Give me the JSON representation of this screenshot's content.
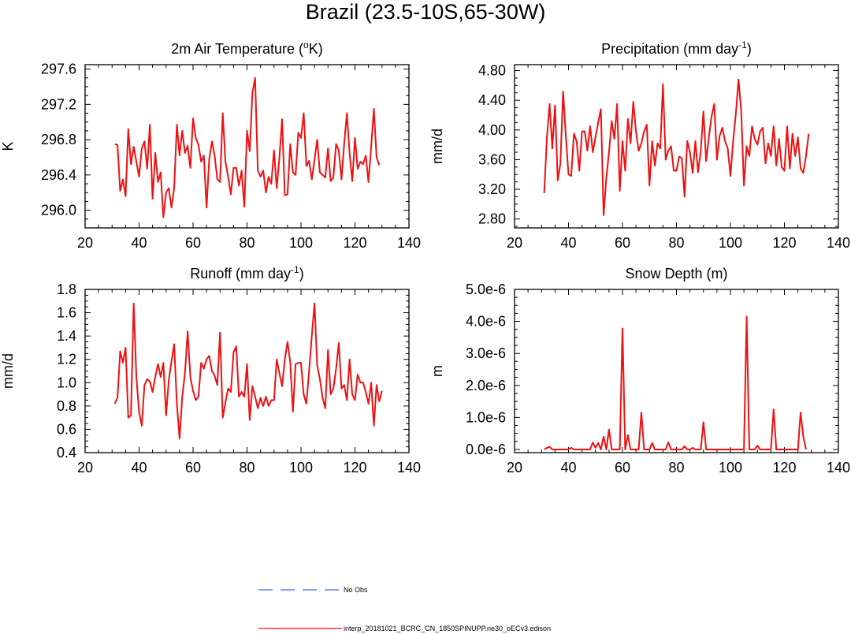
{
  "figure": {
    "title": "Brazil (23.5-10S,65-30W)"
  },
  "legend": {
    "entries": [
      {
        "label": "No Obs",
        "color": "#4466ff",
        "dash": true
      },
      {
        "label": "interp_20181021_BCRC_CN_1850SPINUPP.ne30_oECv3.edison",
        "color": "#ee1111",
        "dash": false
      }
    ]
  },
  "chart_data": [
    {
      "type": "line",
      "title_main": "2m Air Temperature (",
      "title_sup": "o",
      "title_end": "K)",
      "ylabel": "K",
      "xlabel": "",
      "xlim": [
        20,
        140
      ],
      "ylim": [
        295.8,
        297.65
      ],
      "xticks": [
        20,
        40,
        60,
        80,
        100,
        120,
        140
      ],
      "yticks": [
        296.0,
        296.4,
        296.8,
        297.2,
        297.6
      ],
      "ytick_labels": [
        "296.0",
        "296.4",
        "296.8",
        "297.2",
        "297.6"
      ],
      "x_start": 31,
      "series": [
        {
          "name": "interp_20181021_BCRC_CN_1850SPINUPP.ne30_oECv3.edison",
          "color": "#ee1111",
          "values": [
            296.75,
            296.74,
            296.22,
            296.35,
            296.16,
            296.92,
            296.52,
            296.72,
            296.55,
            296.38,
            296.7,
            296.78,
            296.47,
            296.97,
            296.13,
            296.65,
            296.32,
            296.43,
            295.92,
            296.2,
            296.25,
            296.03,
            296.25,
            296.97,
            296.62,
            296.9,
            296.65,
            296.73,
            296.48,
            297.04,
            296.82,
            296.74,
            296.55,
            296.62,
            296.03,
            296.58,
            296.78,
            296.62,
            296.35,
            296.32,
            297.1,
            296.55,
            296.38,
            296.18,
            296.48,
            296.48,
            296.28,
            296.45,
            296.04,
            296.9,
            296.67,
            297.33,
            297.5,
            296.45,
            296.38,
            296.45,
            296.2,
            296.38,
            296.3,
            296.68,
            296.25,
            296.6,
            297.03,
            296.17,
            296.18,
            296.75,
            296.43,
            296.4,
            296.88,
            296.82,
            297.1,
            296.5,
            296.56,
            296.35,
            296.57,
            296.8,
            296.43,
            296.4,
            296.37,
            296.7,
            296.33,
            296.37,
            296.75,
            296.68,
            296.35,
            296.75,
            297.1,
            296.65,
            296.33,
            296.82,
            296.47,
            296.55,
            296.52,
            296.62,
            296.32,
            296.72,
            297.15,
            296.6,
            296.51
          ]
        }
      ]
    },
    {
      "type": "line",
      "title_main": "Precipitation (mm day",
      "title_sup": "-1",
      "title_end": ")",
      "ylabel": "mm/d",
      "xlabel": "",
      "xlim": [
        20,
        140
      ],
      "ylim": [
        2.68,
        4.88
      ],
      "xticks": [
        20,
        40,
        60,
        80,
        100,
        120,
        140
      ],
      "yticks": [
        2.8,
        3.2,
        3.6,
        4.0,
        4.4,
        4.8
      ],
      "ytick_labels": [
        "2.80",
        "3.20",
        "3.60",
        "4.00",
        "4.40",
        "4.80"
      ],
      "x_start": 31,
      "series": [
        {
          "name": "interp_20181021_BCRC_CN_1850SPINUPP.ne30_oECv3.edison",
          "color": "#ee1111",
          "values": [
            3.15,
            3.9,
            4.35,
            3.75,
            4.33,
            3.32,
            3.55,
            4.52,
            3.92,
            3.4,
            3.38,
            3.95,
            3.85,
            3.45,
            3.98,
            3.98,
            3.72,
            4.05,
            3.7,
            3.9,
            4.1,
            4.28,
            2.85,
            3.35,
            3.7,
            4.12,
            3.88,
            4.35,
            3.18,
            3.85,
            3.45,
            4.15,
            3.82,
            4.38,
            3.98,
            3.72,
            3.82,
            3.98,
            4.07,
            3.25,
            3.85,
            3.52,
            3.82,
            3.75,
            4.62,
            3.6,
            3.72,
            3.78,
            3.45,
            3.45,
            3.64,
            3.62,
            3.1,
            3.85,
            3.7,
            3.42,
            3.85,
            3.43,
            3.72,
            4.25,
            3.58,
            3.9,
            4.18,
            4.35,
            3.6,
            3.92,
            4.03,
            3.85,
            3.75,
            3.38,
            3.85,
            4.22,
            4.68,
            4.25,
            3.25,
            3.78,
            3.65,
            4.05,
            3.88,
            3.8,
            3.98,
            4.03,
            3.55,
            3.82,
            3.65,
            4.05,
            3.52,
            3.88,
            3.5,
            3.45,
            4.05,
            3.48,
            3.95,
            3.65,
            3.9,
            3.48,
            3.42,
            3.65,
            3.95
          ]
        }
      ]
    },
    {
      "type": "line",
      "title_main": "Runoff (mm day",
      "title_sup": "-1",
      "title_end": ")",
      "ylabel": "mm/d",
      "xlabel": "",
      "xlim": [
        20,
        140
      ],
      "ylim": [
        0.4,
        1.8
      ],
      "xticks": [
        20,
        40,
        60,
        80,
        100,
        120,
        140
      ],
      "yticks": [
        0.4,
        0.6,
        0.8,
        1.0,
        1.2,
        1.4,
        1.6,
        1.8
      ],
      "ytick_labels": [
        "0.4",
        "0.6",
        "0.8",
        "1.0",
        "1.2",
        "1.4",
        "1.6",
        "1.8"
      ],
      "x_start": 31,
      "series": [
        {
          "name": "interp_20181021_BCRC_CN_1850SPINUPP.ne30_oECv3.edison",
          "color": "#ee1111",
          "values": [
            0.82,
            0.87,
            1.27,
            1.17,
            1.3,
            0.7,
            0.72,
            1.68,
            1.05,
            0.75,
            0.63,
            0.98,
            1.03,
            1.01,
            0.92,
            1.05,
            1.16,
            1.05,
            1.17,
            0.72,
            1.02,
            1.18,
            1.33,
            0.82,
            0.52,
            0.88,
            1.08,
            1.44,
            1.05,
            0.93,
            0.85,
            0.88,
            1.17,
            1.12,
            1.2,
            1.23,
            1.1,
            1.06,
            0.98,
            1.43,
            0.7,
            0.83,
            0.95,
            0.92,
            1.26,
            1.31,
            0.88,
            0.92,
            0.88,
            1.16,
            0.68,
            0.97,
            0.88,
            0.78,
            0.87,
            0.8,
            0.88,
            0.8,
            0.85,
            0.85,
            1.2,
            1.08,
            0.97,
            1.2,
            1.35,
            1.18,
            0.75,
            1.16,
            1.17,
            1.17,
            0.9,
            0.82,
            1.1,
            1.4,
            1.68,
            1.15,
            1.03,
            0.87,
            0.78,
            1.28,
            0.9,
            0.95,
            1.12,
            1.34,
            0.95,
            0.98,
            0.85,
            1.2,
            0.9,
            0.85,
            1.07,
            1.0,
            1.0,
            0.92,
            0.82,
            1.0,
            0.63,
            0.98,
            0.84,
            0.93
          ]
        }
      ]
    },
    {
      "type": "line",
      "title_main": "Snow Depth (m)",
      "title_sup": "",
      "title_end": "",
      "ylabel": "m",
      "xlabel": "",
      "xlim": [
        20,
        140
      ],
      "ylim": [
        -1e-07,
        5e-06
      ],
      "xticks": [
        20,
        40,
        60,
        80,
        100,
        120,
        140
      ],
      "yticks": [
        0,
        1e-06,
        2e-06,
        3e-06,
        4e-06,
        5e-06
      ],
      "ytick_labels": [
        "0.0e-6",
        "1.0e-6",
        "2.0e-6",
        "3.0e-6",
        "4.0e-6",
        "5.0e-6"
      ],
      "x_start": 31,
      "series": [
        {
          "name": "interp_20181021_BCRC_CN_1850SPINUPP.ne30_oECv3.edison",
          "color": "#ee1111",
          "values": [
            0,
            5e-08,
            8e-08,
            0,
            0,
            0,
            0,
            0,
            0,
            0,
            5e-08,
            0,
            0,
            0,
            0,
            0,
            0,
            0,
            2.2e-07,
            5e-08,
            2e-07,
            0,
            4e-07,
            0,
            6.2e-07,
            0,
            0,
            0,
            0,
            3.78e-06,
            0,
            4.5e-07,
            0,
            0,
            0,
            0,
            1.15e-06,
            0,
            0,
            0,
            2e-07,
            0,
            0,
            0,
            0,
            0,
            2.2e-07,
            0,
            0,
            0,
            0,
            0,
            1e-07,
            0,
            0,
            5e-08,
            0,
            0,
            0,
            8.5e-07,
            0,
            0,
            0,
            0,
            0,
            0,
            0,
            0,
            0,
            0,
            0,
            0,
            0,
            0,
            0,
            4.15e-06,
            0,
            0,
            0,
            1.2e-07,
            0,
            0,
            0,
            0,
            0,
            1.25e-06,
            0,
            0,
            0,
            0,
            0,
            0,
            0,
            0,
            0,
            1.15e-06,
            4e-07,
            0
          ]
        }
      ]
    }
  ]
}
